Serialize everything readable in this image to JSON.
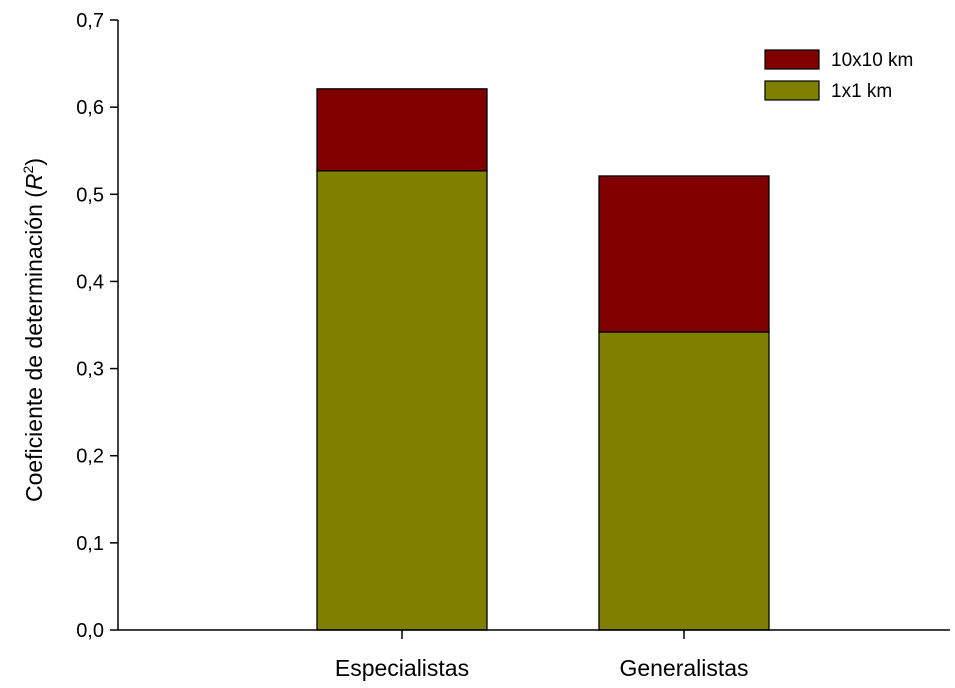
{
  "chart_data": {
    "type": "bar",
    "stacked": true,
    "title": "",
    "xlabel": "",
    "ylabel": "Coeficiente de determinación (R²)",
    "ylabel_main": "Coeficiente de determinación (",
    "ylabel_var": "R",
    "ylabel_sup": "2",
    "ylabel_close": ")",
    "ylim": [
      0,
      0.7
    ],
    "yticks": [
      0,
      0.1,
      0.2,
      0.3,
      0.4,
      0.5,
      0.6,
      0.7
    ],
    "ytick_labels": [
      "0,0",
      "0,1",
      "0,2",
      "0,3",
      "0,4",
      "0,5",
      "0,6",
      "0,7"
    ],
    "categories": [
      "Especialistas",
      "Generalistas"
    ],
    "series": [
      {
        "name": "1x1 km",
        "values": [
          0.527,
          0.342
        ],
        "color": "#808000"
      },
      {
        "name": "10x10 km",
        "values": [
          0.094,
          0.179
        ],
        "color": "#800000"
      }
    ],
    "legend_order": [
      1,
      0
    ],
    "legend_position": "top-right",
    "grid": false
  }
}
